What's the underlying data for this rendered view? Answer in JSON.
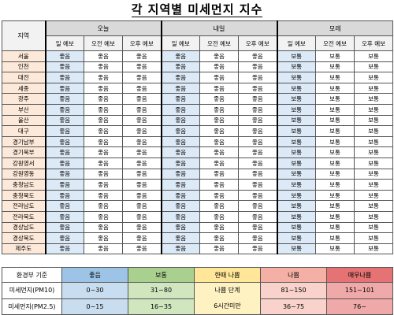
{
  "title": "각 지역별 미세먼지 지수",
  "table": {
    "region_header": "지역",
    "groups": [
      "오늘",
      "내일",
      "모레"
    ],
    "sub_headers": [
      "일 예보",
      "오전 예보",
      "오후 예보",
      "일 예보",
      "오전 예보",
      "오후 예보",
      "일 예보",
      "오전 예보",
      "오후 예보"
    ],
    "rows": [
      {
        "region": "서울",
        "values": [
          "좋음",
          "좋음",
          "좋음",
          "좋음",
          "좋음",
          "좋음",
          "보통",
          "보통",
          "보통"
        ]
      },
      {
        "region": "인천",
        "values": [
          "좋음",
          "좋음",
          "좋음",
          "좋음",
          "좋음",
          "좋음",
          "보통",
          "보통",
          "보통"
        ]
      },
      {
        "region": "대전",
        "values": [
          "좋음",
          "좋음",
          "좋음",
          "좋음",
          "좋음",
          "좋음",
          "보통",
          "보통",
          "보통"
        ]
      },
      {
        "region": "세종",
        "values": [
          "좋음",
          "좋음",
          "좋음",
          "좋음",
          "좋음",
          "좋음",
          "보통",
          "보통",
          "보통"
        ]
      },
      {
        "region": "광주",
        "values": [
          "좋음",
          "좋음",
          "좋음",
          "좋음",
          "좋음",
          "좋음",
          "보통",
          "보통",
          "보통"
        ]
      },
      {
        "region": "부산",
        "values": [
          "좋음",
          "좋음",
          "좋음",
          "좋음",
          "좋음",
          "좋음",
          "보통",
          "보통",
          "보통"
        ]
      },
      {
        "region": "울산",
        "values": [
          "좋음",
          "좋음",
          "좋음",
          "좋음",
          "좋음",
          "좋음",
          "보통",
          "보통",
          "보통"
        ]
      },
      {
        "region": "대구",
        "values": [
          "좋음",
          "좋음",
          "좋음",
          "좋음",
          "좋음",
          "좋음",
          "보통",
          "보통",
          "보통"
        ]
      },
      {
        "region": "경기남부",
        "values": [
          "좋음",
          "좋음",
          "좋음",
          "좋음",
          "좋음",
          "좋음",
          "보통",
          "보통",
          "보통"
        ]
      },
      {
        "region": "경기북부",
        "values": [
          "좋음",
          "좋음",
          "좋음",
          "좋음",
          "좋음",
          "좋음",
          "보통",
          "보통",
          "보통"
        ]
      },
      {
        "region": "강원영서",
        "values": [
          "좋음",
          "좋음",
          "좋음",
          "좋음",
          "좋음",
          "좋음",
          "보통",
          "보통",
          "보통"
        ]
      },
      {
        "region": "강원영동",
        "values": [
          "좋음",
          "좋음",
          "좋음",
          "좋음",
          "좋음",
          "좋음",
          "보통",
          "보통",
          "보통"
        ]
      },
      {
        "region": "충청남도",
        "values": [
          "좋음",
          "좋음",
          "좋음",
          "좋음",
          "좋음",
          "좋음",
          "보통",
          "보통",
          "보통"
        ]
      },
      {
        "region": "충청북도",
        "values": [
          "좋음",
          "좋음",
          "좋음",
          "좋음",
          "좋음",
          "좋음",
          "보통",
          "보통",
          "보통"
        ]
      },
      {
        "region": "전라남도",
        "values": [
          "좋음",
          "좋음",
          "좋음",
          "좋음",
          "좋음",
          "좋음",
          "보통",
          "보통",
          "보통"
        ]
      },
      {
        "region": "전라북도",
        "values": [
          "좋음",
          "좋음",
          "좋음",
          "좋음",
          "좋음",
          "좋음",
          "보통",
          "보통",
          "보통"
        ]
      },
      {
        "region": "경상남도",
        "values": [
          "좋음",
          "좋음",
          "좋음",
          "좋음",
          "좋음",
          "좋음",
          "보통",
          "보통",
          "보통"
        ]
      },
      {
        "region": "경상북도",
        "values": [
          "좋음",
          "좋음",
          "좋음",
          "좋음",
          "좋음",
          "좋음",
          "보통",
          "보통",
          "보통"
        ]
      },
      {
        "region": "제주도",
        "values": [
          "좋음",
          "좋음",
          "좋음",
          "좋음",
          "좋음",
          "좋음",
          "보통",
          "보통",
          "보통"
        ]
      }
    ]
  },
  "legend": {
    "header": "환경부 기준",
    "levels": [
      "좋음",
      "보통",
      "한때 나쁨",
      "나쁨",
      "매우나쁨"
    ],
    "rows": [
      {
        "label": "미세먼지(PM10)",
        "values": [
          "0~30",
          "31~80",
          "81~150",
          "151~101"
        ]
      },
      {
        "label": "미세먼지(PM2.5)",
        "values": [
          "0~15",
          "16~35",
          "36~75",
          "76~"
        ]
      }
    ],
    "sometimes_bad": [
      "나쁨 단계",
      "6시간미만"
    ]
  }
}
